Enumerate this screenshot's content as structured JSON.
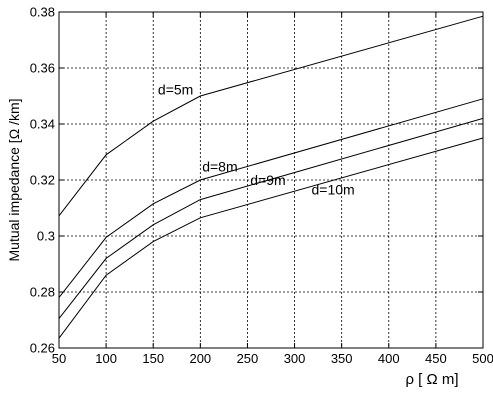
{
  "chart_data": {
    "type": "line",
    "title": "",
    "xlabel": "ρ [ Ω m]",
    "ylabel": "Mutual impedance [Ω /km]",
    "xlim": [
      50,
      500
    ],
    "ylim": [
      0.26,
      0.38
    ],
    "xticks": [
      "50",
      "100",
      "150",
      "200",
      "250",
      "300",
      "350",
      "400",
      "450",
      "500"
    ],
    "yticks": [
      "0.26",
      "0.28",
      "0.3",
      "0.32",
      "0.34",
      "0.36",
      "0.38"
    ],
    "grid": true,
    "grid_style": "dashed",
    "line_color": "#000000",
    "x": [
      50,
      100,
      150,
      200,
      500
    ],
    "series": [
      {
        "name": "d=5m",
        "values": [
          0.3072,
          0.329,
          0.341,
          0.35,
          0.3785
        ]
      },
      {
        "name": "d=8m",
        "values": [
          0.278,
          0.2995,
          0.3115,
          0.32,
          0.349
        ]
      },
      {
        "name": "d=9m",
        "values": [
          0.2705,
          0.292,
          0.304,
          0.313,
          0.342
        ]
      },
      {
        "name": "d=10m",
        "values": [
          0.2635,
          0.286,
          0.298,
          0.3065,
          0.335
        ]
      }
    ],
    "annotations": [
      {
        "text": "d=5m",
        "x": 155,
        "y": 0.3505
      },
      {
        "text": "d=8m",
        "x": 202,
        "y": 0.323
      },
      {
        "text": "d=9m",
        "x": 253,
        "y": 0.3182
      },
      {
        "text": "d=10m",
        "x": 318,
        "y": 0.3148
      }
    ]
  }
}
